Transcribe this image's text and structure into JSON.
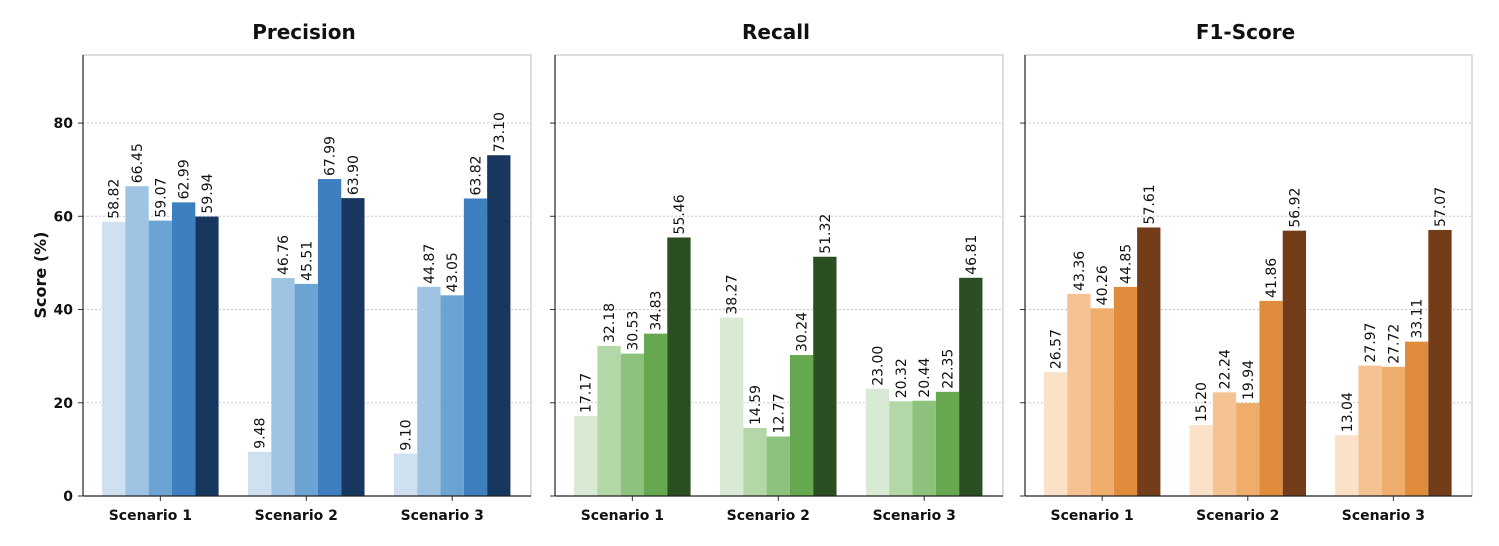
{
  "chart_data": [
    {
      "type": "bar",
      "title": "Precision",
      "ylabel": "Score (%)",
      "xlabel": "",
      "categories": [
        "Scenario 1",
        "Scenario 2",
        "Scenario 3"
      ],
      "ylim": [
        0,
        94.6
      ],
      "yticks": [
        0,
        20,
        40,
        60,
        80
      ],
      "grid": true,
      "colors": [
        "#cfe0f1",
        "#9fc3e3",
        "#6ba3d3",
        "#3d7fbf",
        "#17375e"
      ],
      "series": [
        {
          "name": "s1",
          "values": [
            58.82,
            9.48,
            9.1
          ]
        },
        {
          "name": "s2",
          "values": [
            66.45,
            46.76,
            44.87
          ]
        },
        {
          "name": "s3",
          "values": [
            59.07,
            45.51,
            43.05
          ]
        },
        {
          "name": "s4",
          "values": [
            62.99,
            67.99,
            63.82
          ]
        },
        {
          "name": "s5",
          "values": [
            59.94,
            63.9,
            73.1
          ]
        }
      ],
      "labels": [
        [
          "58.82",
          "9.48",
          "9.10"
        ],
        [
          "66.45",
          "46.76",
          "44.87"
        ],
        [
          "59.07",
          "45.51",
          "43.05"
        ],
        [
          "62.99",
          "67.99",
          "63.82"
        ],
        [
          "59.94",
          "63.90",
          "73.10"
        ]
      ]
    },
    {
      "type": "bar",
      "title": "Recall",
      "categories": [
        "Scenario 1",
        "Scenario 2",
        "Scenario 3"
      ],
      "ylim": [
        0,
        94.6
      ],
      "yticks": [
        0,
        20,
        40,
        60,
        80
      ],
      "grid": true,
      "colors": [
        "#d8ead3",
        "#b3d7a6",
        "#8dc27c",
        "#66a84f",
        "#2b4e23"
      ],
      "series": [
        {
          "name": "s1",
          "values": [
            17.17,
            38.27,
            23.0
          ]
        },
        {
          "name": "s2",
          "values": [
            32.18,
            14.59,
            20.32
          ]
        },
        {
          "name": "s3",
          "values": [
            30.53,
            12.77,
            20.44
          ]
        },
        {
          "name": "s4",
          "values": [
            34.83,
            30.24,
            22.35
          ]
        },
        {
          "name": "s5",
          "values": [
            55.46,
            51.32,
            46.81
          ]
        }
      ],
      "labels": [
        [
          "17.17",
          "38.27",
          "23.00"
        ],
        [
          "32.18",
          "14.59",
          "20.32"
        ],
        [
          "30.53",
          "12.77",
          "20.44"
        ],
        [
          "34.83",
          "30.24",
          "22.35"
        ],
        [
          "55.46",
          "51.32",
          "46.81"
        ]
      ]
    },
    {
      "type": "bar",
      "title": "F1-Score",
      "categories": [
        "Scenario 1",
        "Scenario 2",
        "Scenario 3"
      ],
      "ylim": [
        0,
        94.6
      ],
      "yticks": [
        0,
        20,
        40,
        60,
        80
      ],
      "grid": true,
      "colors": [
        "#fbe1c8",
        "#f5c393",
        "#efad6c",
        "#df8d3c",
        "#733d19"
      ],
      "series": [
        {
          "name": "s1",
          "values": [
            26.57,
            15.2,
            13.04
          ]
        },
        {
          "name": "s2",
          "values": [
            43.36,
            22.24,
            27.97
          ]
        },
        {
          "name": "s3",
          "values": [
            40.26,
            19.94,
            27.72
          ]
        },
        {
          "name": "s4",
          "values": [
            44.85,
            41.86,
            33.11
          ]
        },
        {
          "name": "s5",
          "values": [
            57.61,
            56.92,
            57.07
          ]
        }
      ],
      "labels": [
        [
          "26.57",
          "15.20",
          "13.04"
        ],
        [
          "43.36",
          "22.24",
          "27.97"
        ],
        [
          "40.26",
          "19.94",
          "27.72"
        ],
        [
          "44.85",
          "41.86",
          "33.11"
        ],
        [
          "57.61",
          "56.92",
          "57.07"
        ]
      ]
    }
  ],
  "ytick_labels": [
    "0",
    "20",
    "40",
    "60",
    "80"
  ]
}
